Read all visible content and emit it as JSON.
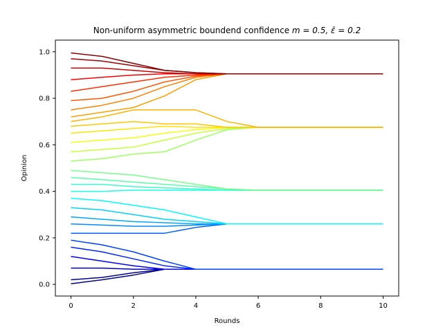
{
  "chart_data": {
    "type": "line",
    "title_prefix": "Non-uniform asymmetric boundend confidence ",
    "title_math": "m = 0.5, ε̄ = 0.2",
    "xlabel": "Rounds",
    "ylabel": "Opinion",
    "xlim": [
      -0.5,
      10.5
    ],
    "ylim": [
      -0.05,
      1.05
    ],
    "xticks": [
      0,
      2,
      4,
      6,
      8,
      10
    ],
    "yticks": [
      0.0,
      0.2,
      0.4,
      0.6,
      0.8,
      1.0
    ],
    "xtick_labels": [
      "0",
      "2",
      "4",
      "6",
      "8",
      "10"
    ],
    "ytick_labels": [
      "0.0",
      "0.2",
      "0.4",
      "0.6",
      "0.8",
      "1.0"
    ],
    "grid": false,
    "colormap": "jet",
    "x": [
      0,
      1,
      2,
      3,
      4,
      5,
      6,
      7,
      8,
      10
    ],
    "clusters": [
      {
        "final_value": 0.905,
        "range": [
          0.7,
          1.0
        ],
        "converged_round": 5
      },
      {
        "final_value": 0.675,
        "range": [
          0.51,
          0.7
        ],
        "converged_round": 6
      },
      {
        "final_value": 0.405,
        "range": [
          0.38,
          0.49
        ],
        "converged_round": 6
      },
      {
        "final_value": 0.26,
        "range": [
          0.19,
          0.38
        ],
        "converged_round": 6
      },
      {
        "final_value": 0.065,
        "range": [
          0.0,
          0.17
        ],
        "converged_round": 4
      }
    ],
    "series_sample": [
      {
        "values": [
          0.995,
          0.98,
          0.95,
          0.92,
          0.91,
          0.905,
          0.905,
          0.905,
          0.905,
          0.905
        ]
      },
      {
        "values": [
          0.97,
          0.96,
          0.94,
          0.92,
          0.91,
          0.905,
          0.905,
          0.905,
          0.905,
          0.905
        ]
      },
      {
        "values": [
          0.93,
          0.93,
          0.92,
          0.91,
          0.905,
          0.905,
          0.905,
          0.905,
          0.905,
          0.905
        ]
      },
      {
        "values": [
          0.88,
          0.89,
          0.9,
          0.905,
          0.905,
          0.905,
          0.905,
          0.905,
          0.905,
          0.905
        ]
      },
      {
        "values": [
          0.83,
          0.85,
          0.87,
          0.89,
          0.9,
          0.905,
          0.905,
          0.905,
          0.905,
          0.905
        ]
      },
      {
        "values": [
          0.79,
          0.8,
          0.83,
          0.87,
          0.895,
          0.905,
          0.905,
          0.905,
          0.905,
          0.905
        ]
      },
      {
        "values": [
          0.75,
          0.77,
          0.8,
          0.85,
          0.89,
          0.905,
          0.905,
          0.905,
          0.905,
          0.905
        ]
      },
      {
        "values": [
          0.72,
          0.74,
          0.76,
          0.81,
          0.88,
          0.905,
          0.905,
          0.905,
          0.905,
          0.905
        ]
      },
      {
        "values": [
          0.7,
          0.72,
          0.75,
          0.75,
          0.75,
          0.7,
          0.675,
          0.675,
          0.675,
          0.675
        ]
      },
      {
        "values": [
          0.68,
          0.69,
          0.7,
          0.69,
          0.69,
          0.675,
          0.675,
          0.675,
          0.675,
          0.675
        ]
      },
      {
        "values": [
          0.65,
          0.66,
          0.67,
          0.68,
          0.675,
          0.675,
          0.675,
          0.675,
          0.675,
          0.675
        ]
      },
      {
        "values": [
          0.61,
          0.62,
          0.63,
          0.65,
          0.665,
          0.675,
          0.675,
          0.675,
          0.675,
          0.675
        ]
      },
      {
        "values": [
          0.57,
          0.58,
          0.59,
          0.62,
          0.65,
          0.67,
          0.675,
          0.675,
          0.675,
          0.675
        ]
      },
      {
        "values": [
          0.53,
          0.54,
          0.56,
          0.57,
          0.62,
          0.665,
          0.675,
          0.675,
          0.675,
          0.675
        ]
      },
      {
        "values": [
          0.49,
          0.48,
          0.47,
          0.45,
          0.43,
          0.41,
          0.405,
          0.405,
          0.405,
          0.405
        ]
      },
      {
        "values": [
          0.46,
          0.45,
          0.44,
          0.43,
          0.42,
          0.41,
          0.405,
          0.405,
          0.405,
          0.405
        ]
      },
      {
        "values": [
          0.43,
          0.43,
          0.42,
          0.415,
          0.41,
          0.405,
          0.405,
          0.405,
          0.405,
          0.405
        ]
      },
      {
        "values": [
          0.4,
          0.4,
          0.405,
          0.405,
          0.405,
          0.405,
          0.405,
          0.405,
          0.405,
          0.405
        ]
      },
      {
        "values": [
          0.37,
          0.36,
          0.34,
          0.32,
          0.29,
          0.26,
          0.26,
          0.26,
          0.26,
          0.26
        ]
      },
      {
        "values": [
          0.33,
          0.32,
          0.3,
          0.28,
          0.27,
          0.26,
          0.26,
          0.26,
          0.26,
          0.26
        ]
      },
      {
        "values": [
          0.29,
          0.28,
          0.27,
          0.265,
          0.26,
          0.26,
          0.26,
          0.26,
          0.26,
          0.26
        ]
      },
      {
        "values": [
          0.26,
          0.255,
          0.25,
          0.25,
          0.255,
          0.26,
          0.26,
          0.26,
          0.26,
          0.26
        ]
      },
      {
        "values": [
          0.22,
          0.22,
          0.22,
          0.22,
          0.245,
          0.26,
          0.26,
          0.26,
          0.26,
          0.26
        ]
      },
      {
        "values": [
          0.19,
          0.17,
          0.14,
          0.1,
          0.065,
          0.065,
          0.065,
          0.065,
          0.065,
          0.065
        ]
      },
      {
        "values": [
          0.16,
          0.14,
          0.11,
          0.08,
          0.065,
          0.065,
          0.065,
          0.065,
          0.065,
          0.065
        ]
      },
      {
        "values": [
          0.12,
          0.1,
          0.08,
          0.065,
          0.065,
          0.065,
          0.065,
          0.065,
          0.065,
          0.065
        ]
      },
      {
        "values": [
          0.07,
          0.07,
          0.065,
          0.065,
          0.065,
          0.065,
          0.065,
          0.065,
          0.065,
          0.065
        ]
      },
      {
        "values": [
          0.02,
          0.03,
          0.05,
          0.065,
          0.065,
          0.065,
          0.065,
          0.065,
          0.065,
          0.065
        ]
      },
      {
        "values": [
          0.003,
          0.02,
          0.04,
          0.065,
          0.065,
          0.065,
          0.065,
          0.065,
          0.065,
          0.065
        ]
      }
    ]
  }
}
